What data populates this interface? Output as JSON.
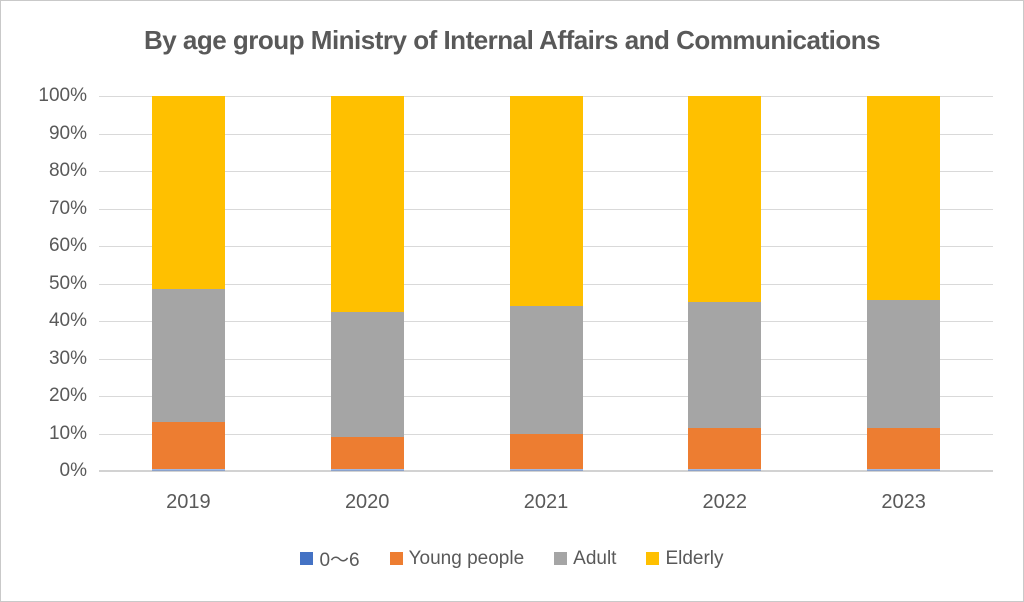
{
  "canvas": {
    "background": "#ffffff",
    "border_color": "#c9c9c9"
  },
  "chart_data": {
    "type": "bar",
    "stacked": true,
    "percent_stacked": true,
    "title": "By age group Ministry of Internal Affairs and Communications",
    "title_color": "#595959",
    "categories": [
      "2019",
      "2020",
      "2021",
      "2022",
      "2023"
    ],
    "series": [
      {
        "name": "0〜6",
        "color": "#4472C4",
        "values": [
          0.5,
          0.5,
          0.5,
          0.5,
          0.5
        ]
      },
      {
        "name": "Young people",
        "color": "#ED7D31",
        "values": [
          12.5,
          8.5,
          9.5,
          11,
          11
        ]
      },
      {
        "name": "Adult",
        "color": "#A5A5A5",
        "values": [
          35.5,
          33.5,
          34,
          33.5,
          34
        ]
      },
      {
        "name": "Elderly",
        "color": "#FFC000",
        "values": [
          51.5,
          57.5,
          56,
          55,
          54.5
        ]
      }
    ],
    "y_ticks": [
      "100%",
      "90%",
      "80%",
      "70%",
      "60%",
      "50%",
      "40%",
      "30%",
      "20%",
      "10%",
      "0%"
    ],
    "ylim": [
      0,
      100
    ],
    "xlabel": "",
    "ylabel": "",
    "grid": true,
    "gridline_color": "#d9d9d9",
    "axis_text_color": "#595959",
    "legend_position": "bottom"
  }
}
